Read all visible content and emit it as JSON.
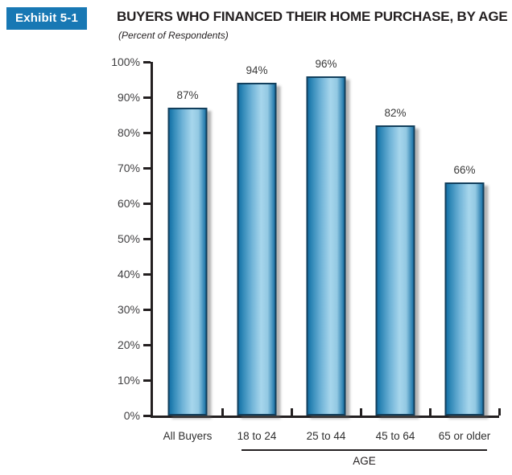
{
  "header": {
    "exhibit_label": "Exhibit 5-1",
    "title": "BUYERS WHO FINANCED THEIR HOME PURCHASE, BY AGE",
    "subtitle": "(Percent of Respondents)"
  },
  "chart_data": {
    "type": "bar",
    "title": "BUYERS WHO FINANCED THEIR HOME PURCHASE, BY AGE",
    "subtitle": "(Percent of Respondents)",
    "categories": [
      "All Buyers",
      "18 to 24",
      "25 to 44",
      "45 to 64",
      "65 or older"
    ],
    "values": [
      87,
      94,
      96,
      82,
      66
    ],
    "value_labels": [
      "87%",
      "94%",
      "96%",
      "82%",
      "66%"
    ],
    "xlabel": "AGE",
    "xlabel_group_span": [
      "18 to 24",
      "65 or older"
    ],
    "ylabel": "",
    "ylim": [
      0,
      100
    ],
    "y_ticks": [
      "0%",
      "10%",
      "20%",
      "30%",
      "40%",
      "50%",
      "60%",
      "70%",
      "80%",
      "90%",
      "100%"
    ],
    "grid": false,
    "legend": "none",
    "colors": {
      "bar_dark": "#1470a6",
      "bar_light": "#a7d6ec",
      "bar_border": "#123f5c",
      "axis": "#231f20",
      "badge_background": "#1878b4",
      "badge_text": "#ffffff"
    }
  }
}
